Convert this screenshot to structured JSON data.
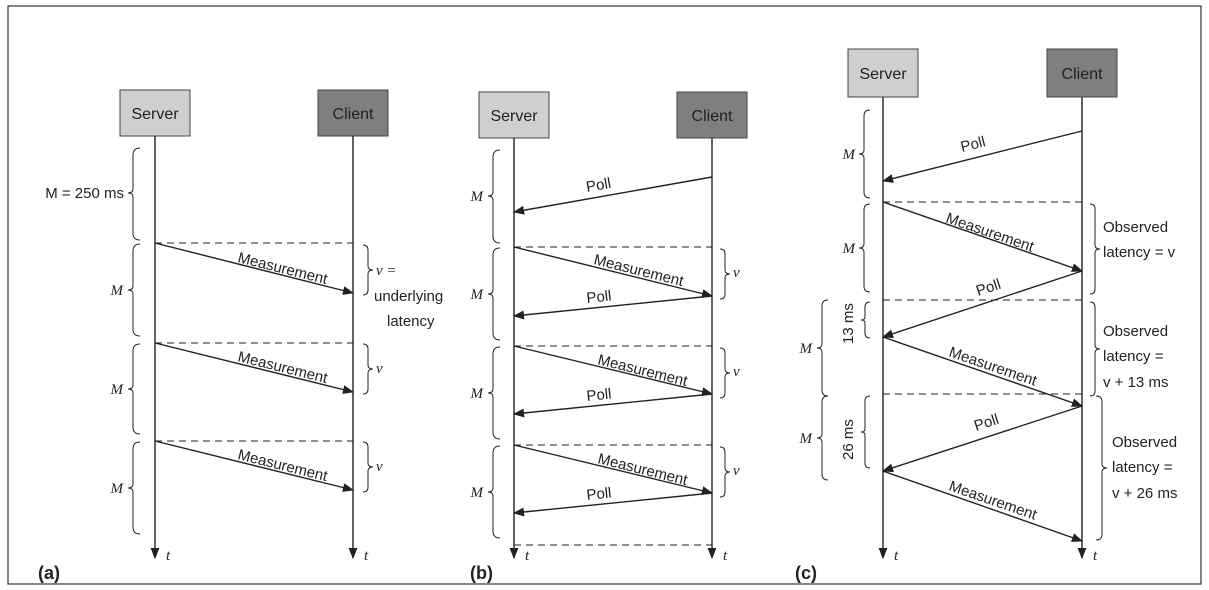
{
  "entities": {
    "server": "Server",
    "client": "Client"
  },
  "labels": {
    "time_axis": "t",
    "M": "M",
    "M_equals": "M = 250 ms",
    "v": "v",
    "v_equals": "v =",
    "underlying_latency_1": "underlying",
    "underlying_latency_2": "latency",
    "measurement": "Measurement",
    "poll": "Poll",
    "observed": "Observed",
    "latency_equals_v": "latency = v",
    "latency_equals": "latency =",
    "v_plus_13": "v + 13 ms",
    "v_plus_26": "v + 26 ms",
    "offset_13": "13 ms",
    "offset_26": "26 ms"
  },
  "panels": {
    "a": "(a)",
    "b": "(b)",
    "c": "(c)"
  },
  "colors": {
    "server_box": "#cfcfcf",
    "client_box": "#7f7f7f",
    "line": "#222222",
    "border": "#333333"
  }
}
